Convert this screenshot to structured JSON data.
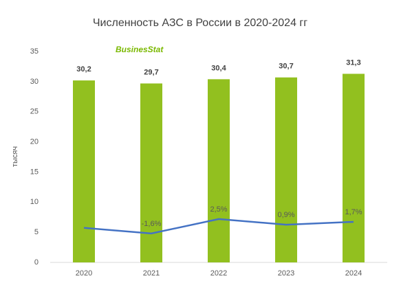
{
  "chart_data": {
    "type": "bar",
    "title": "Численность АЗС в России в 2020-2024 гг",
    "logo": "BusinesStat",
    "ylabel": "тысяч",
    "categories": [
      "2020",
      "2021",
      "2022",
      "2023",
      "2024"
    ],
    "series": [
      {
        "type": "bar",
        "color": "#92c01f",
        "values": [
          30.2,
          29.7,
          30.4,
          30.7,
          31.3
        ],
        "value_labels": [
          "30,2",
          "29,7",
          "30,4",
          "30,7",
          "31,3"
        ]
      },
      {
        "type": "line",
        "axis": "y2",
        "color": "#4472c4",
        "values": [
          0,
          -1.6,
          2.5,
          0.9,
          1.7
        ],
        "value_labels": [
          null,
          "-1,6%",
          "2,5%",
          "0,9%",
          "1,7%"
        ]
      }
    ],
    "ylim": [
      0,
      35
    ],
    "yticks": [
      0,
      5,
      10,
      15,
      20,
      25,
      30,
      35
    ],
    "y2lim": [
      -9.8,
      50
    ]
  }
}
